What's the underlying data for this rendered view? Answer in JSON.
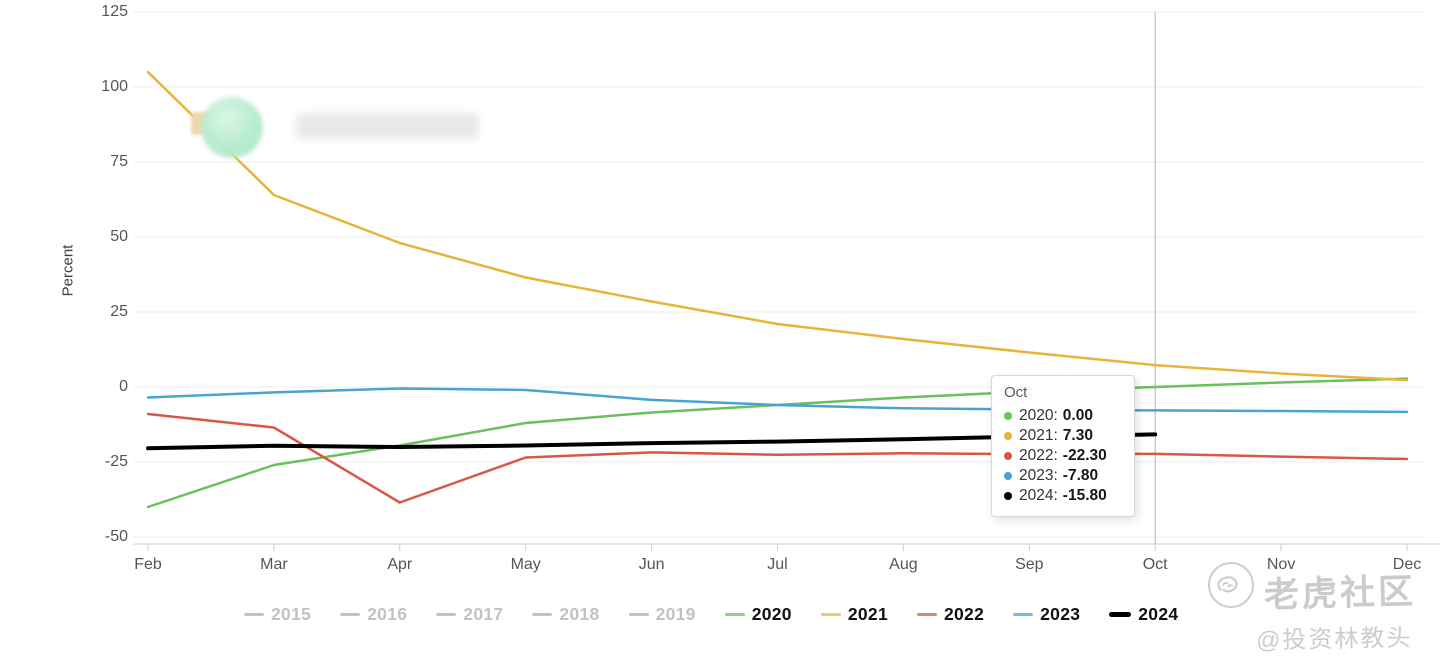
{
  "chart_data": {
    "type": "line",
    "title": "",
    "xlabel": "",
    "ylabel": "Percent",
    "ylim": [
      -50,
      125
    ],
    "grid": true,
    "legend_position": "bottom",
    "y_ticks": [
      125,
      100,
      75,
      50,
      25,
      0,
      -25,
      -50
    ],
    "x": [
      "Feb",
      "Mar",
      "Apr",
      "May",
      "Jun",
      "Jul",
      "Aug",
      "Sep",
      "Oct",
      "Nov",
      "Dec"
    ],
    "crosshair_month": "Oct",
    "series": [
      {
        "name": "2015",
        "active": false,
        "color": "#c3c3c3",
        "values": null
      },
      {
        "name": "2016",
        "active": false,
        "color": "#c3c3c3",
        "values": null
      },
      {
        "name": "2017",
        "active": false,
        "color": "#c3c3c3",
        "values": null
      },
      {
        "name": "2018",
        "active": false,
        "color": "#c3c3c3",
        "values": null
      },
      {
        "name": "2019",
        "active": false,
        "color": "#c3c3c3",
        "values": null
      },
      {
        "name": "2020",
        "active": true,
        "color": "#6bbf5e",
        "width": 2.5,
        "values": [
          -40,
          -26,
          -19.5,
          -12,
          -8.5,
          -6,
          -3.5,
          -1.5,
          0,
          1.5,
          2.8
        ]
      },
      {
        "name": "2021",
        "active": true,
        "color": "#e8b339",
        "width": 2.5,
        "values": [
          105,
          64,
          48,
          36.5,
          28.5,
          21,
          16,
          11.5,
          7.3,
          4.5,
          2.3
        ]
      },
      {
        "name": "2022",
        "active": true,
        "color": "#d85745",
        "width": 2.5,
        "values": [
          -9,
          -13.5,
          -38.5,
          -23.5,
          -21.8,
          -22.6,
          -22.1,
          -22.4,
          -22.3,
          -23.2,
          -24
        ]
      },
      {
        "name": "2023",
        "active": true,
        "color": "#48a3d2",
        "width": 2.5,
        "values": [
          -3.5,
          -1.8,
          -0.5,
          -1,
          -4.3,
          -6,
          -7.1,
          -7.5,
          -7.8,
          -8,
          -8.3
        ]
      },
      {
        "name": "2024",
        "active": true,
        "color": "#000000",
        "width": 4,
        "values": [
          -20.4,
          -19.6,
          -20,
          -19.5,
          -18.7,
          -18.2,
          -17.4,
          -16.5,
          -15.8
        ]
      }
    ]
  },
  "tooltip": {
    "title": "Oct",
    "rows": [
      {
        "year": "2020",
        "value": "0.00",
        "color": "#6bbf5e"
      },
      {
        "year": "2021",
        "value": "7.30",
        "color": "#e8b339"
      },
      {
        "year": "2022",
        "value": "-22.30",
        "color": "#d85745"
      },
      {
        "year": "2023",
        "value": "-7.80",
        "color": "#48a3d2"
      },
      {
        "year": "2024",
        "value": "-15.80",
        "color": "#000000"
      }
    ]
  },
  "legend": {
    "active_text_color": "#111111",
    "inactive_text_color": "#c2c2c2"
  },
  "watermark": {
    "brand": "老虎社区",
    "handle": "@投资林教头"
  },
  "colors": {
    "gridline": "#ededed",
    "axis": "#cccccc",
    "crosshair": "#b3b3b3",
    "tick_text": "#555555"
  }
}
